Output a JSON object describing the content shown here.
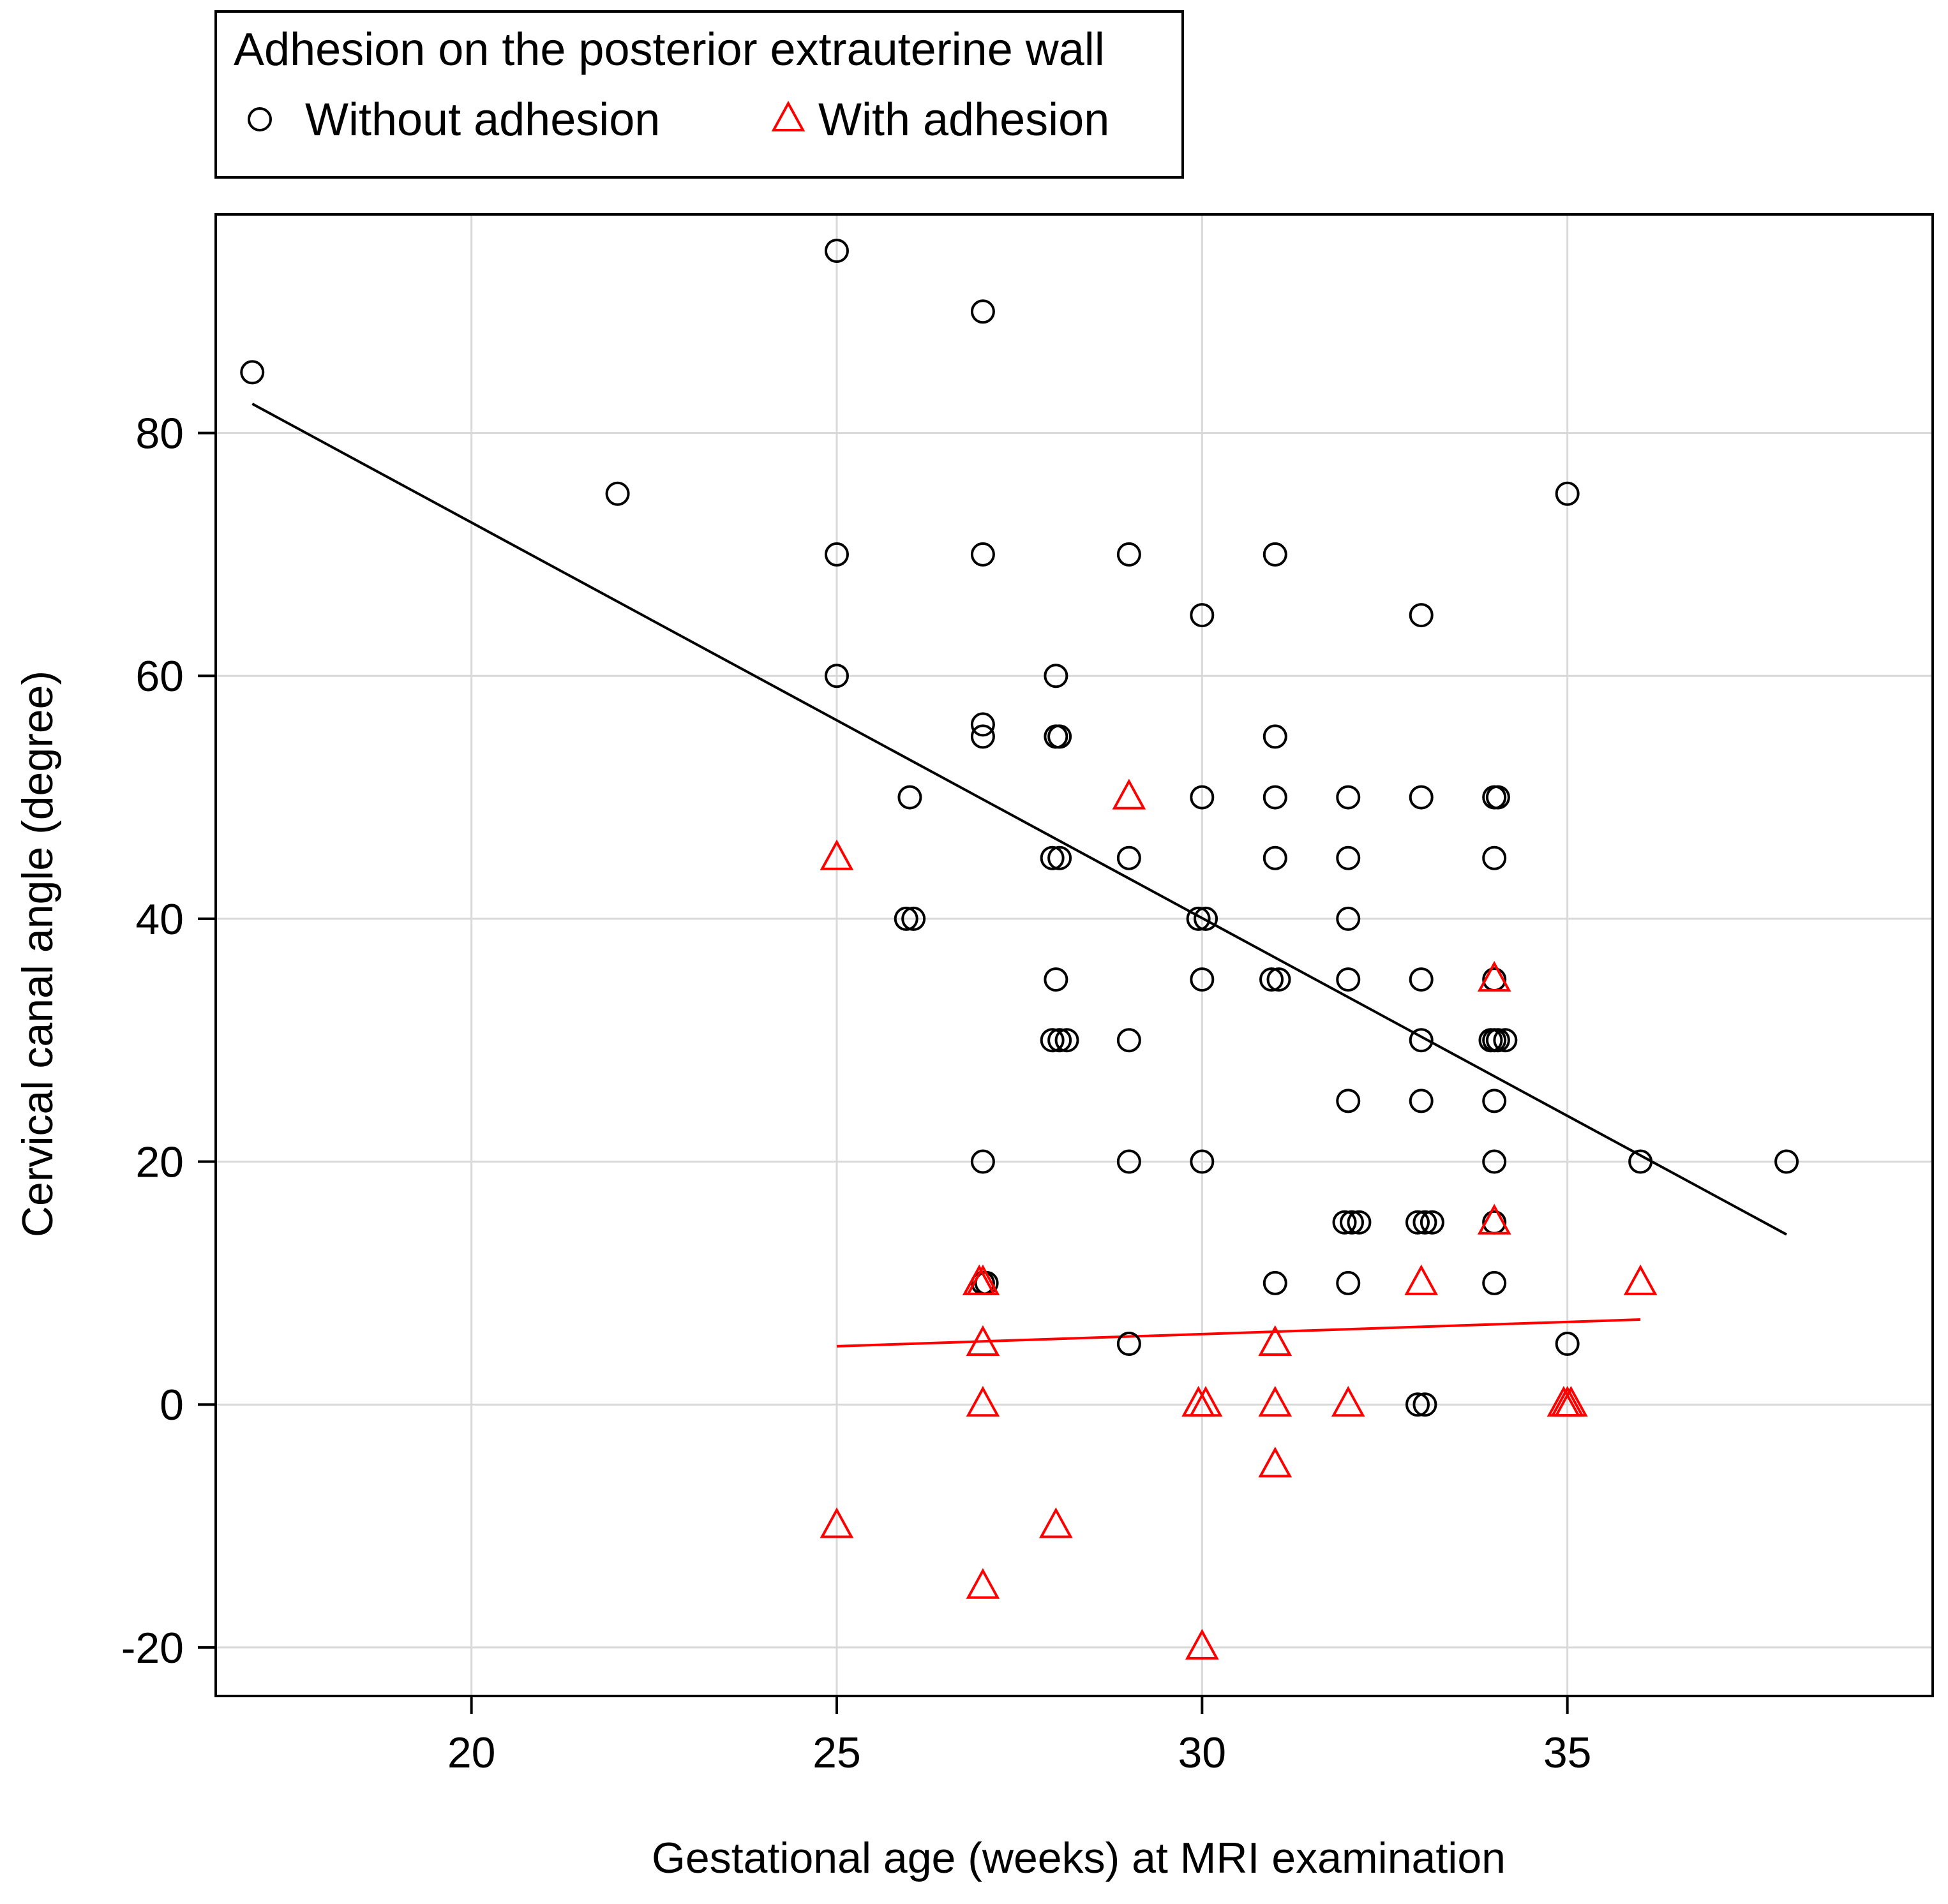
{
  "chart_data": {
    "type": "scatter",
    "title": "",
    "xlabel": "Gestational age (weeks) at MRI examination",
    "ylabel": "Cervical canal angle (degree)",
    "xlim": [
      16.5,
      40
    ],
    "ylim": [
      -24,
      98
    ],
    "xticks": [
      20,
      25,
      30,
      35
    ],
    "yticks": [
      -20,
      0,
      20,
      40,
      60,
      80
    ],
    "x_tick_labels": [
      "20",
      "25",
      "30",
      "35"
    ],
    "y_tick_labels": [
      "-20",
      "0",
      "20",
      "40",
      "60",
      "80"
    ],
    "grid": true,
    "legend": {
      "title": "Adhesion on the posterior extrauterine wall",
      "placement": "top-left, above plot",
      "entries": [
        "Without adhesion",
        "With adhesion"
      ]
    },
    "series": [
      {
        "name": "Without adhesion",
        "marker": "circle",
        "color": "#000000",
        "x": [
          17,
          22,
          25,
          25,
          25,
          26,
          25.95,
          26.05,
          27,
          27,
          27,
          27,
          27,
          27,
          27.05,
          28,
          28,
          28.05,
          27.95,
          28.05,
          28,
          27.95,
          28.05,
          28.15,
          29,
          29,
          29,
          29,
          29,
          30,
          30,
          29.95,
          30.05,
          30,
          30,
          31,
          31,
          31,
          31,
          30.95,
          31.05,
          31,
          32,
          32,
          32,
          32,
          32,
          31.95,
          32.05,
          32.15,
          32,
          33,
          33,
          33,
          33,
          33,
          32.95,
          33.05,
          33.15,
          32.95,
          33.05,
          34,
          34.05,
          34,
          34,
          34,
          33.95,
          34.05,
          34.15,
          34,
          34,
          34,
          34,
          35,
          35,
          36,
          38
        ],
        "y": [
          85,
          75,
          95,
          70,
          60,
          50,
          40,
          40,
          90,
          70,
          56,
          55,
          20,
          10,
          10,
          60,
          55,
          55,
          45,
          45,
          35,
          30,
          30,
          30,
          70,
          45,
          30,
          20,
          5,
          65,
          50,
          40,
          40,
          35,
          20,
          70,
          55,
          50,
          45,
          35,
          35,
          10,
          50,
          45,
          40,
          35,
          25,
          15,
          15,
          15,
          10,
          65,
          50,
          35,
          30,
          25,
          15,
          15,
          15,
          0,
          0,
          50,
          50,
          45,
          35,
          30,
          30,
          30,
          30,
          25,
          20,
          15,
          10,
          75,
          5,
          20,
          20
        ]
      },
      {
        "name": "With adhesion",
        "marker": "triangle",
        "color": "#ff0000",
        "x": [
          25,
          25,
          27,
          27,
          27,
          26.95,
          27,
          28,
          29,
          30,
          29.95,
          30.05,
          31,
          31,
          31,
          32,
          33,
          34,
          34,
          35,
          34.95,
          35.05,
          36
        ],
        "y": [
          45,
          -10,
          5,
          0,
          -15,
          10,
          10,
          -10,
          50,
          -20,
          0,
          0,
          5,
          0,
          -5,
          0,
          10,
          35,
          15,
          0,
          0,
          0,
          10
        ]
      }
    ],
    "fit_lines": [
      {
        "name": "Without adhesion fit",
        "color": "#000000",
        "x": [
          17,
          38
        ],
        "y": [
          82.4,
          14
        ]
      },
      {
        "name": "With adhesion fit",
        "color": "#ff0000",
        "x": [
          25,
          36
        ],
        "y": [
          4.8,
          7
        ]
      }
    ]
  }
}
